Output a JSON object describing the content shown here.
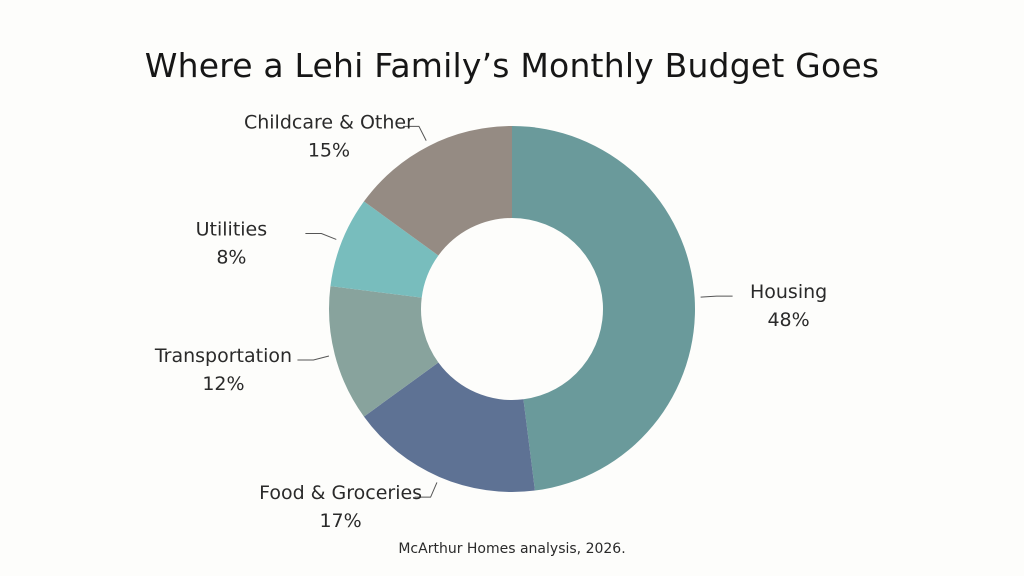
{
  "chart_data": {
    "type": "pie",
    "title": "Where a Lehi Family’s Monthly Budget Goes",
    "source": "McArthur Homes analysis, 2026.",
    "donut": true,
    "start_angle_deg": 0,
    "direction": "clockwise",
    "slices": [
      {
        "label": "Housing",
        "value": 48,
        "value_label": "48%",
        "color": "#6a9a9b"
      },
      {
        "label": "Food & Groceries",
        "value": 17,
        "value_label": "17%",
        "color": "#5e7294"
      },
      {
        "label": "Transportation",
        "value": 12,
        "value_label": "12%",
        "color": "#88a39d"
      },
      {
        "label": "Utilities",
        "value": 8,
        "value_label": "8%",
        "color": "#78bdbd"
      },
      {
        "label": "Childcare & Other",
        "value": 15,
        "value_label": "15%",
        "color": "#958b83"
      }
    ]
  }
}
